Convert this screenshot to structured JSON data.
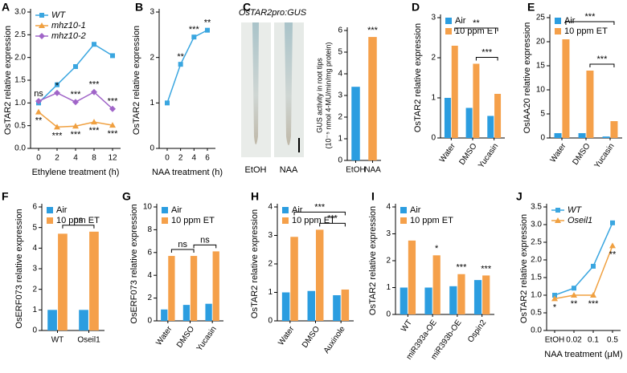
{
  "chart_data": [
    {
      "label": "A",
      "type": "line",
      "categories": [
        "0",
        "2",
        "4",
        "8",
        "12"
      ],
      "xlabel": "Ethylene treatment (h)",
      "ylabel": "OsTAR2 relative expression",
      "ylim": [
        0,
        3
      ],
      "yticks": [
        {
          "value": 0,
          "label": "0.0"
        },
        0.5,
        {
          "value": 1,
          "label": "1.0"
        },
        1.5,
        {
          "value": 2,
          "label": "2.0"
        },
        2.5,
        {
          "value": 3,
          "label": "3.0"
        }
      ],
      "legend": "upper left",
      "series": [
        {
          "name": "WT",
          "color": "#3aa6e0",
          "marker": "square",
          "values": [
            1.0,
            1.4,
            1.8,
            2.29,
            2.04
          ]
        },
        {
          "name": "mhz10-1",
          "color": "#f0a040",
          "marker": "triangle",
          "values": [
            0.8,
            0.47,
            0.49,
            0.58,
            0.51
          ],
          "significance": [
            "**",
            "***",
            "***",
            "***",
            "***"
          ]
        },
        {
          "name": "mhz10-2",
          "color": "#a065c8",
          "marker": "diamond",
          "values": [
            1.04,
            1.22,
            1.02,
            1.24,
            0.87
          ],
          "significance": [
            "ns",
            "*",
            "***",
            "***",
            "***"
          ]
        }
      ]
    },
    {
      "label": "B",
      "type": "line",
      "categories": [
        "0",
        "2",
        "4",
        "6"
      ],
      "xlabel": "NAA treatment (h)",
      "ylabel": "OsTAR2 relative expression",
      "ylim": [
        0,
        3
      ],
      "yticks": [
        0,
        1,
        2,
        3
      ],
      "color": "#3aa6e0",
      "marker": "square",
      "values": [
        1.0,
        1.85,
        2.45,
        2.6
      ],
      "significance": [
        null,
        "**",
        "***",
        "**"
      ]
    },
    {
      "label": "C",
      "type": "bar",
      "image_title": "OsTAR2pro:GUS",
      "image_labels": [
        "EtOH",
        "NAA"
      ],
      "categories": [
        "EtOH",
        "NAA"
      ],
      "values": [
        3.4,
        5.7
      ],
      "colors": [
        "#2b9de0",
        "#f5a04a"
      ],
      "significance": [
        null,
        "***"
      ],
      "ylabel": [
        "GUS activity in root tips",
        "(10⁻⁵ nmol 4-MU/min/mg protein)"
      ],
      "ylim": [
        0,
        6
      ],
      "yticks": [
        0,
        1,
        2,
        3,
        4,
        5,
        6
      ]
    },
    {
      "label": "D",
      "type": "bar",
      "categories": [
        "Water",
        "DMSO",
        "Yucasin"
      ],
      "ylabel": "OsTAR2 relative expression",
      "ylim": [
        0,
        3
      ],
      "yticks": [
        0,
        1,
        2,
        3
      ],
      "legend": "upper left",
      "series": [
        {
          "name": "Air",
          "color": "#2b9de0",
          "values": [
            1.0,
            0.75,
            0.55
          ]
        },
        {
          "name": "10 ppm ET",
          "color": "#f5a04a",
          "values": [
            2.3,
            1.85,
            1.1
          ]
        }
      ],
      "comparisons": [
        "**",
        "***"
      ]
    },
    {
      "label": "E",
      "type": "bar",
      "categories": [
        "Water",
        "DMSO",
        "Yucasin"
      ],
      "ylabel": "OsIAA20 relative expression",
      "ylim": [
        0,
        25
      ],
      "yticks": [
        0,
        5,
        10,
        15,
        20,
        25
      ],
      "legend": "upper left",
      "series": [
        {
          "name": "Air",
          "color": "#2b9de0",
          "values": [
            1.0,
            1.0,
            0.3
          ]
        },
        {
          "name": "10 ppm ET",
          "color": "#f5a04a",
          "values": [
            20.5,
            14.0,
            3.5
          ]
        }
      ],
      "comparisons": [
        "***",
        "***"
      ]
    },
    {
      "label": "F",
      "type": "bar",
      "categories": [
        "WT",
        "Oseil1"
      ],
      "ylabel": "OsERF073 relative expression",
      "ylim": [
        0,
        6
      ],
      "yticks": [
        0,
        1,
        2,
        3,
        4,
        5,
        6
      ],
      "legend": "upper left",
      "series": [
        {
          "name": "Air",
          "color": "#2b9de0",
          "values": [
            1.0,
            1.0
          ]
        },
        {
          "name": "10 ppm ET",
          "color": "#f5a04a",
          "values": [
            4.7,
            4.8
          ]
        }
      ],
      "comparisons": [
        "ns"
      ]
    },
    {
      "label": "G",
      "type": "bar",
      "categories": [
        "Water",
        "DMSO",
        "Yucasin"
      ],
      "ylabel": "OsERF073 relative expression",
      "ylim": [
        0,
        10
      ],
      "yticks": [
        0,
        2,
        4,
        6,
        8,
        10
      ],
      "legend": "upper left",
      "series": [
        {
          "name": "Air",
          "color": "#2b9de0",
          "values": [
            1.0,
            1.4,
            1.5
          ]
        },
        {
          "name": "10 ppm ET",
          "color": "#f5a04a",
          "values": [
            5.7,
            5.7,
            6.1
          ]
        }
      ],
      "comparisons": [
        "ns",
        "ns"
      ]
    },
    {
      "label": "H",
      "type": "bar",
      "categories": [
        "Water",
        "DMSO",
        "Auxinole"
      ],
      "ylabel": "OsTAR2 relative expression",
      "ylim": [
        0,
        4
      ],
      "yticks": [
        0,
        1,
        2,
        3,
        4
      ],
      "legend": "upper left",
      "series": [
        {
          "name": "Air",
          "color": "#2b9de0",
          "values": [
            1.0,
            1.05,
            0.9
          ]
        },
        {
          "name": "10 ppm ET",
          "color": "#f5a04a",
          "values": [
            2.95,
            3.2,
            1.1
          ]
        }
      ],
      "comparisons": [
        "***",
        "***"
      ]
    },
    {
      "label": "I",
      "type": "bar",
      "categories": [
        "WT",
        "miR393a-OE",
        "miR393b-OE",
        "Ospin2"
      ],
      "ylabel": "OsTAR2 relative expression",
      "ylim": [
        0,
        4
      ],
      "yticks": [
        0,
        1,
        2,
        3,
        4
      ],
      "legend": "upper left",
      "series": [
        {
          "name": "Air",
          "color": "#2b9de0",
          "values": [
            1.0,
            1.0,
            1.05,
            1.28
          ]
        },
        {
          "name": "10 ppm ET",
          "color": "#f5a04a",
          "values": [
            2.75,
            2.2,
            1.5,
            1.45
          ],
          "significance": [
            null,
            "*",
            "***",
            "***"
          ]
        }
      ]
    },
    {
      "label": "J",
      "type": "line",
      "categories": [
        "EtOH",
        "0.02",
        "0.1",
        "0.5"
      ],
      "xlabel": "NAA treatment (μM)",
      "ylabel": "OsTAR2 relative expression",
      "ylim": [
        0,
        3.5
      ],
      "yticks": [
        {
          "value": 0,
          "label": "0.0"
        },
        0.5,
        {
          "value": 1,
          "label": "1.0"
        },
        1.5,
        {
          "value": 2,
          "label": "2.0"
        },
        2.5,
        {
          "value": 3,
          "label": "3.0"
        },
        3.5
      ],
      "legend": "upper left",
      "series": [
        {
          "name": "WT",
          "color": "#3aa6e0",
          "marker": "square",
          "values": [
            1.0,
            1.2,
            1.82,
            3.05
          ]
        },
        {
          "name": "Oseil1",
          "color": "#f0a040",
          "marker": "triangle",
          "values": [
            0.9,
            1.0,
            1.0,
            2.4
          ],
          "significance": [
            "*",
            "**",
            "***",
            "**"
          ]
        }
      ]
    }
  ]
}
